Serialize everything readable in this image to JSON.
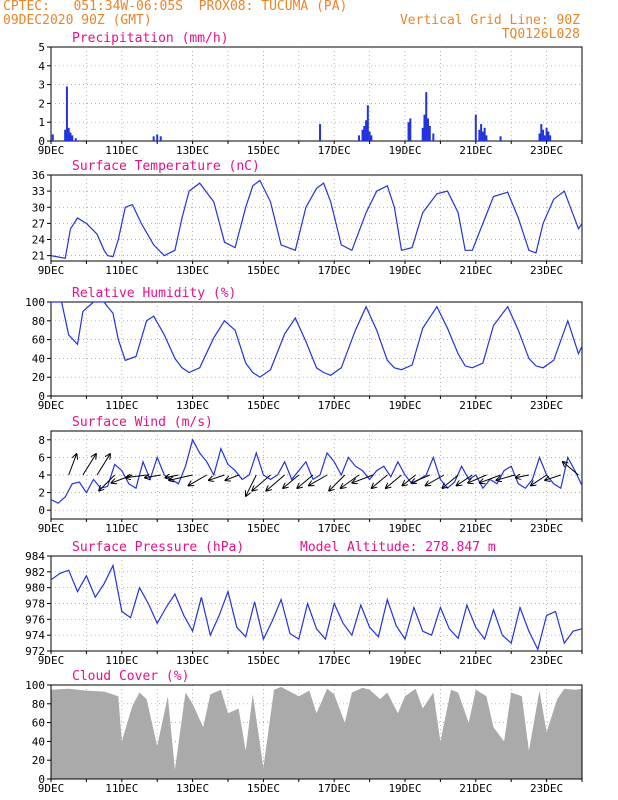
{
  "header": {
    "line1_left": "CPTEC:   051:34W-06:05S  PROX08: TUCUMA (PA)",
    "line2_left": "09DEC2020 90Z (GMT)",
    "line2_right": "Vertical Grid Line: 90Z",
    "line3_right": "TQ0126L028",
    "model_altitude": "Model Altitude: 278.847 m"
  },
  "colors": {
    "header": "#e8852a",
    "title": "#e8108a",
    "line": "#2233dd",
    "cloud": "#aaaaaa",
    "wind_arrow": "#000000"
  },
  "chart_data": [
    {
      "type": "bar",
      "title": "Precipitation (mm/h)",
      "ylim": [
        0,
        5
      ],
      "yticks": [
        0,
        1,
        2,
        3,
        4,
        5
      ],
      "xlim": [
        9,
        24
      ],
      "xticks": [
        "9DEC",
        "11DEC",
        "13DEC",
        "15DEC",
        "17DEC",
        "19DEC",
        "21DEC",
        "23DEC"
      ],
      "x": [
        9.05,
        9.4,
        9.45,
        9.5,
        9.55,
        9.6,
        9.7,
        11.9,
        12.0,
        12.1,
        16.6,
        17.7,
        17.8,
        17.85,
        17.9,
        17.95,
        18.0,
        18.05,
        19.1,
        19.15,
        19.5,
        19.55,
        19.6,
        19.65,
        19.7,
        19.8,
        21.0,
        21.1,
        21.15,
        21.2,
        21.25,
        21.3,
        21.7,
        22.8,
        22.85,
        22.9,
        22.95,
        23.0,
        23.05,
        23.1
      ],
      "values": [
        0.35,
        0.6,
        2.9,
        0.7,
        0.45,
        0.3,
        0.15,
        0.25,
        0.35,
        0.25,
        0.9,
        0.3,
        0.6,
        0.8,
        1.1,
        1.9,
        0.5,
        0.3,
        1.0,
        1.2,
        0.7,
        1.4,
        2.6,
        1.2,
        0.8,
        0.4,
        1.4,
        0.6,
        0.9,
        0.5,
        0.7,
        0.3,
        0.25,
        0.4,
        0.9,
        0.6,
        0.3,
        0.7,
        0.5,
        0.3
      ]
    },
    {
      "type": "line",
      "title": "Surface Temperature (nC)",
      "ylim": [
        20,
        36
      ],
      "yticks": [
        21,
        24,
        27,
        30,
        33,
        36
      ],
      "xlim": [
        9,
        24
      ],
      "xticks": [
        "9DEC",
        "11DEC",
        "13DEC",
        "15DEC",
        "17DEC",
        "19DEC",
        "21DEC",
        "23DEC"
      ],
      "x": [
        9.0,
        9.4,
        9.55,
        9.75,
        10.0,
        10.3,
        10.5,
        10.6,
        10.75,
        10.9,
        11.1,
        11.3,
        11.55,
        11.9,
        12.2,
        12.5,
        12.7,
        12.9,
        13.2,
        13.6,
        13.9,
        14.2,
        14.5,
        14.7,
        14.9,
        15.2,
        15.5,
        15.9,
        16.2,
        16.5,
        16.7,
        16.9,
        17.2,
        17.5,
        17.9,
        18.2,
        18.5,
        18.7,
        18.9,
        19.2,
        19.5,
        19.9,
        20.2,
        20.5,
        20.7,
        20.9,
        21.2,
        21.5,
        21.9,
        22.2,
        22.5,
        22.7,
        22.9,
        23.2,
        23.5,
        23.9,
        24.0
      ],
      "values": [
        21,
        20.5,
        26,
        28,
        27,
        25,
        22,
        21,
        20.8,
        24,
        30,
        30.5,
        27,
        23,
        21,
        22,
        28,
        33,
        34.5,
        31,
        23.5,
        22.5,
        30,
        34,
        35,
        31,
        23,
        22,
        30,
        33.5,
        34.5,
        31,
        23,
        22,
        29,
        33,
        34,
        30,
        22,
        22.5,
        29,
        32.5,
        33,
        29,
        22,
        22,
        27,
        32,
        32.8,
        28,
        22,
        21.5,
        27,
        31.5,
        33,
        26,
        27
      ]
    },
    {
      "type": "line",
      "title": "Relative Humidity (%)",
      "ylim": [
        0,
        100
      ],
      "yticks": [
        0,
        20,
        40,
        60,
        80,
        100
      ],
      "xlim": [
        9,
        24
      ],
      "xticks": [
        "9DEC",
        "11DEC",
        "13DEC",
        "15DEC",
        "17DEC",
        "19DEC",
        "21DEC",
        "23DEC"
      ],
      "x": [
        9.0,
        9.3,
        9.5,
        9.75,
        9.9,
        10.2,
        10.5,
        10.6,
        10.75,
        10.9,
        11.1,
        11.4,
        11.7,
        11.9,
        12.2,
        12.5,
        12.7,
        12.9,
        13.2,
        13.6,
        13.9,
        14.2,
        14.5,
        14.7,
        14.9,
        15.2,
        15.6,
        15.9,
        16.2,
        16.5,
        16.7,
        16.9,
        17.2,
        17.6,
        17.9,
        18.2,
        18.5,
        18.7,
        18.9,
        19.2,
        19.5,
        19.9,
        20.2,
        20.5,
        20.7,
        20.9,
        21.2,
        21.5,
        21.9,
        22.2,
        22.5,
        22.7,
        22.9,
        23.2,
        23.6,
        23.9,
        24.0
      ],
      "values": [
        100,
        100,
        65,
        55,
        90,
        100,
        100,
        95,
        88,
        60,
        38,
        42,
        80,
        85,
        65,
        40,
        30,
        25,
        30,
        62,
        80,
        70,
        35,
        25,
        20,
        28,
        66,
        83,
        58,
        30,
        25,
        22,
        30,
        70,
        95,
        70,
        38,
        30,
        28,
        33,
        72,
        95,
        72,
        45,
        32,
        30,
        35,
        75,
        95,
        70,
        40,
        32,
        30,
        38,
        80,
        45,
        53
      ]
    },
    {
      "type": "line",
      "title": "Surface Wind (m/s)",
      "ylim": [
        -1,
        9
      ],
      "yticks": [
        0,
        2,
        4,
        6,
        8
      ],
      "xlim": [
        9,
        24
      ],
      "xticks": [
        "9DEC",
        "11DEC",
        "13DEC",
        "15DEC",
        "17DEC",
        "19DEC",
        "21DEC",
        "23DEC"
      ],
      "x": [
        9.0,
        9.2,
        9.4,
        9.6,
        9.8,
        10.0,
        10.2,
        10.4,
        10.6,
        10.8,
        11.0,
        11.2,
        11.4,
        11.6,
        11.8,
        12.0,
        12.2,
        12.4,
        12.6,
        12.8,
        13.0,
        13.2,
        13.4,
        13.6,
        13.8,
        14.0,
        14.2,
        14.4,
        14.6,
        14.8,
        15.0,
        15.2,
        15.4,
        15.6,
        15.8,
        16.0,
        16.2,
        16.4,
        16.6,
        16.8,
        17.0,
        17.2,
        17.4,
        17.6,
        17.8,
        18.0,
        18.2,
        18.4,
        18.6,
        18.8,
        19.0,
        19.2,
        19.4,
        19.6,
        19.8,
        20.0,
        20.2,
        20.4,
        20.6,
        20.8,
        21.0,
        21.2,
        21.4,
        21.6,
        21.8,
        22.0,
        22.2,
        22.4,
        22.6,
        22.8,
        23.0,
        23.2,
        23.4,
        23.6,
        23.8,
        24.0
      ],
      "values": [
        1.2,
        0.8,
        1.5,
        3.0,
        3.2,
        2.0,
        3.5,
        2.5,
        2.7,
        5.2,
        4.5,
        3.0,
        2.5,
        5.5,
        3.5,
        6.0,
        4.0,
        3.5,
        3.0,
        5.0,
        8.0,
        6.5,
        5.5,
        4.0,
        7.0,
        5.2,
        4.5,
        3.5,
        4.0,
        6.5,
        4.0,
        3.5,
        4.0,
        5.5,
        3.5,
        4.5,
        5.5,
        3.5,
        4.0,
        6.5,
        5.5,
        4.0,
        6.0,
        5.0,
        4.5,
        3.5,
        4.5,
        5.0,
        3.8,
        5.5,
        4.0,
        3.0,
        3.5,
        4.0,
        6.0,
        3.5,
        2.5,
        3.2,
        5.0,
        3.5,
        4.0,
        2.5,
        3.5,
        3.0,
        4.5,
        5.0,
        3.0,
        2.5,
        3.5,
        6.0,
        4.0,
        3.0,
        2.5,
        6.0,
        4.5,
        2.8
      ]
    },
    {
      "type": "line",
      "title": "Surface Pressure (hPa)",
      "ylim": [
        972,
        984
      ],
      "yticks": [
        972,
        974,
        976,
        978,
        980,
        982,
        984
      ],
      "xlim": [
        9,
        24
      ],
      "xticks": [
        "9DEC",
        "11DEC",
        "13DEC",
        "15DEC",
        "17DEC",
        "19DEC",
        "21DEC",
        "23DEC"
      ],
      "x": [
        9.0,
        9.25,
        9.5,
        9.75,
        10.0,
        10.25,
        10.5,
        10.75,
        11.0,
        11.25,
        11.5,
        11.75,
        12.0,
        12.25,
        12.5,
        12.75,
        13.0,
        13.25,
        13.5,
        13.75,
        14.0,
        14.25,
        14.5,
        14.75,
        15.0,
        15.25,
        15.5,
        15.75,
        16.0,
        16.25,
        16.5,
        16.75,
        17.0,
        17.25,
        17.5,
        17.75,
        18.0,
        18.25,
        18.5,
        18.75,
        19.0,
        19.25,
        19.5,
        19.75,
        20.0,
        20.25,
        20.5,
        20.75,
        21.0,
        21.25,
        21.5,
        21.75,
        22.0,
        22.25,
        22.5,
        22.75,
        23.0,
        23.25,
        23.5,
        23.75,
        24.0
      ],
      "values": [
        981.0,
        981.8,
        982.2,
        979.5,
        981.5,
        978.8,
        980.5,
        982.8,
        977.0,
        976.2,
        980.0,
        978.0,
        975.5,
        977.5,
        979.2,
        976.5,
        974.5,
        978.8,
        974.0,
        976.5,
        979.5,
        975.0,
        973.8,
        978.2,
        973.5,
        975.8,
        978.5,
        974.2,
        973.5,
        978.0,
        974.8,
        973.5,
        978.0,
        975.5,
        974.0,
        977.8,
        975.0,
        973.8,
        978.5,
        975.2,
        973.5,
        977.5,
        974.5,
        974.0,
        977.5,
        974.8,
        973.6,
        977.8,
        975.0,
        973.5,
        977.2,
        974.0,
        973.0,
        977.5,
        974.5,
        972.2,
        976.5,
        977.0,
        973.0,
        974.5,
        974.8
      ]
    },
    {
      "type": "area",
      "title": "Cloud Cover (%)",
      "ylim": [
        0,
        100
      ],
      "yticks": [
        0,
        20,
        40,
        60,
        80,
        100
      ],
      "xlim": [
        9,
        24
      ],
      "xticks": [
        "9DEC",
        "11DEC",
        "13DEC",
        "15DEC",
        "17DEC",
        "19DEC",
        "21DEC",
        "23DEC"
      ],
      "x": [
        9.0,
        9.5,
        10.0,
        10.5,
        10.9,
        11.0,
        11.3,
        11.5,
        11.7,
        12.0,
        12.3,
        12.5,
        12.8,
        13.0,
        13.3,
        13.5,
        13.8,
        14.0,
        14.3,
        14.5,
        14.7,
        15.0,
        15.3,
        15.5,
        15.8,
        16.0,
        16.3,
        16.5,
        16.8,
        17.0,
        17.3,
        17.5,
        17.8,
        18.0,
        18.3,
        18.5,
        18.8,
        19.0,
        19.3,
        19.5,
        19.8,
        20.0,
        20.3,
        20.5,
        20.8,
        21.0,
        21.3,
        21.5,
        21.8,
        22.0,
        22.3,
        22.5,
        22.8,
        23.0,
        23.3,
        23.5,
        23.8,
        24.0
      ],
      "values": [
        95,
        96,
        94,
        93,
        88,
        40,
        78,
        92,
        85,
        35,
        88,
        10,
        92,
        80,
        55,
        90,
        95,
        70,
        75,
        30,
        90,
        12,
        95,
        98,
        92,
        88,
        94,
        70,
        96,
        90,
        60,
        92,
        97,
        95,
        85,
        92,
        70,
        88,
        96,
        75,
        92,
        40,
        95,
        92,
        60,
        95,
        88,
        55,
        40,
        92,
        88,
        30,
        94,
        50,
        85,
        96,
        95,
        96
      ]
    }
  ],
  "wind_vectors": {
    "x": [
      9.5,
      9.9,
      10.3,
      10.8,
      11.3,
      11.7,
      12.1,
      12.6,
      13.0,
      13.4,
      13.9,
      14.3,
      14.8,
      15.2,
      15.6,
      16.0,
      16.4,
      16.8,
      17.3,
      17.7,
      18.1,
      18.5,
      18.9,
      19.3,
      19.7,
      20.1,
      20.5,
      20.9,
      21.3,
      21.7,
      22.1,
      22.5,
      23.0,
      23.4,
      23.9
    ],
    "u": [
      0.3,
      0.5,
      0.5,
      -0.6,
      -0.8,
      -0.8,
      -0.6,
      -0.5,
      -0.9,
      -0.7,
      -0.6,
      -0.5,
      -0.4,
      -0.7,
      -0.7,
      -0.6,
      -0.6,
      -0.7,
      -0.6,
      -0.7,
      -0.8,
      -0.6,
      -0.6,
      -0.5,
      -0.7,
      -0.7,
      -0.6,
      -0.6,
      -0.7,
      -0.8,
      -0.7,
      -0.5,
      -0.6,
      -0.6,
      -0.6
    ],
    "v": [
      0.8,
      0.8,
      0.8,
      -0.6,
      -0.3,
      -0.1,
      -0.1,
      -0.1,
      -0.2,
      -0.4,
      -0.2,
      -0.2,
      -0.8,
      -0.6,
      -0.6,
      -0.5,
      -0.5,
      -0.4,
      -0.6,
      -0.5,
      -0.3,
      -0.5,
      -0.5,
      -0.4,
      -0.3,
      -0.4,
      -0.5,
      -0.4,
      -0.3,
      -0.3,
      -0.2,
      -0.1,
      -0.4,
      -0.2,
      0.5
    ]
  }
}
